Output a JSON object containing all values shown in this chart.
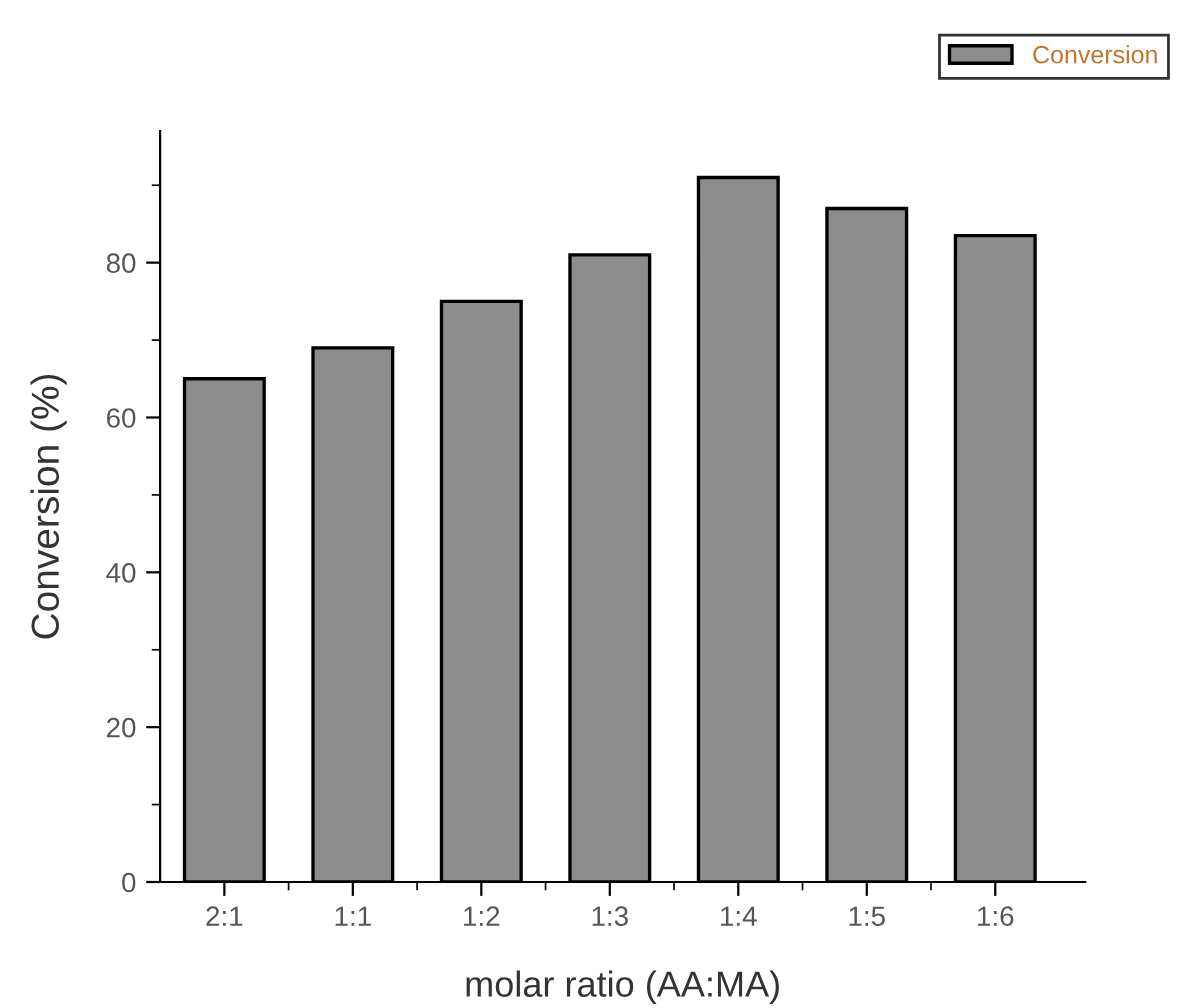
{
  "chart_data": {
    "type": "bar",
    "xlabel": "molar ratio (AA:MA)",
    "ylabel": "Conversion (%)",
    "categories": [
      "2:1",
      "1:1",
      "1:2",
      "1:3",
      "1:4",
      "1:5",
      "1:6"
    ],
    "series": [
      {
        "name": "Conversion",
        "color": "#8c8c8c",
        "values": [
          65,
          69,
          75,
          81,
          91,
          87,
          83.5
        ]
      }
    ],
    "ylim": [
      0,
      97
    ],
    "yticks": [
      0,
      20,
      40,
      60,
      80
    ],
    "grid": false,
    "legend": "top right"
  }
}
